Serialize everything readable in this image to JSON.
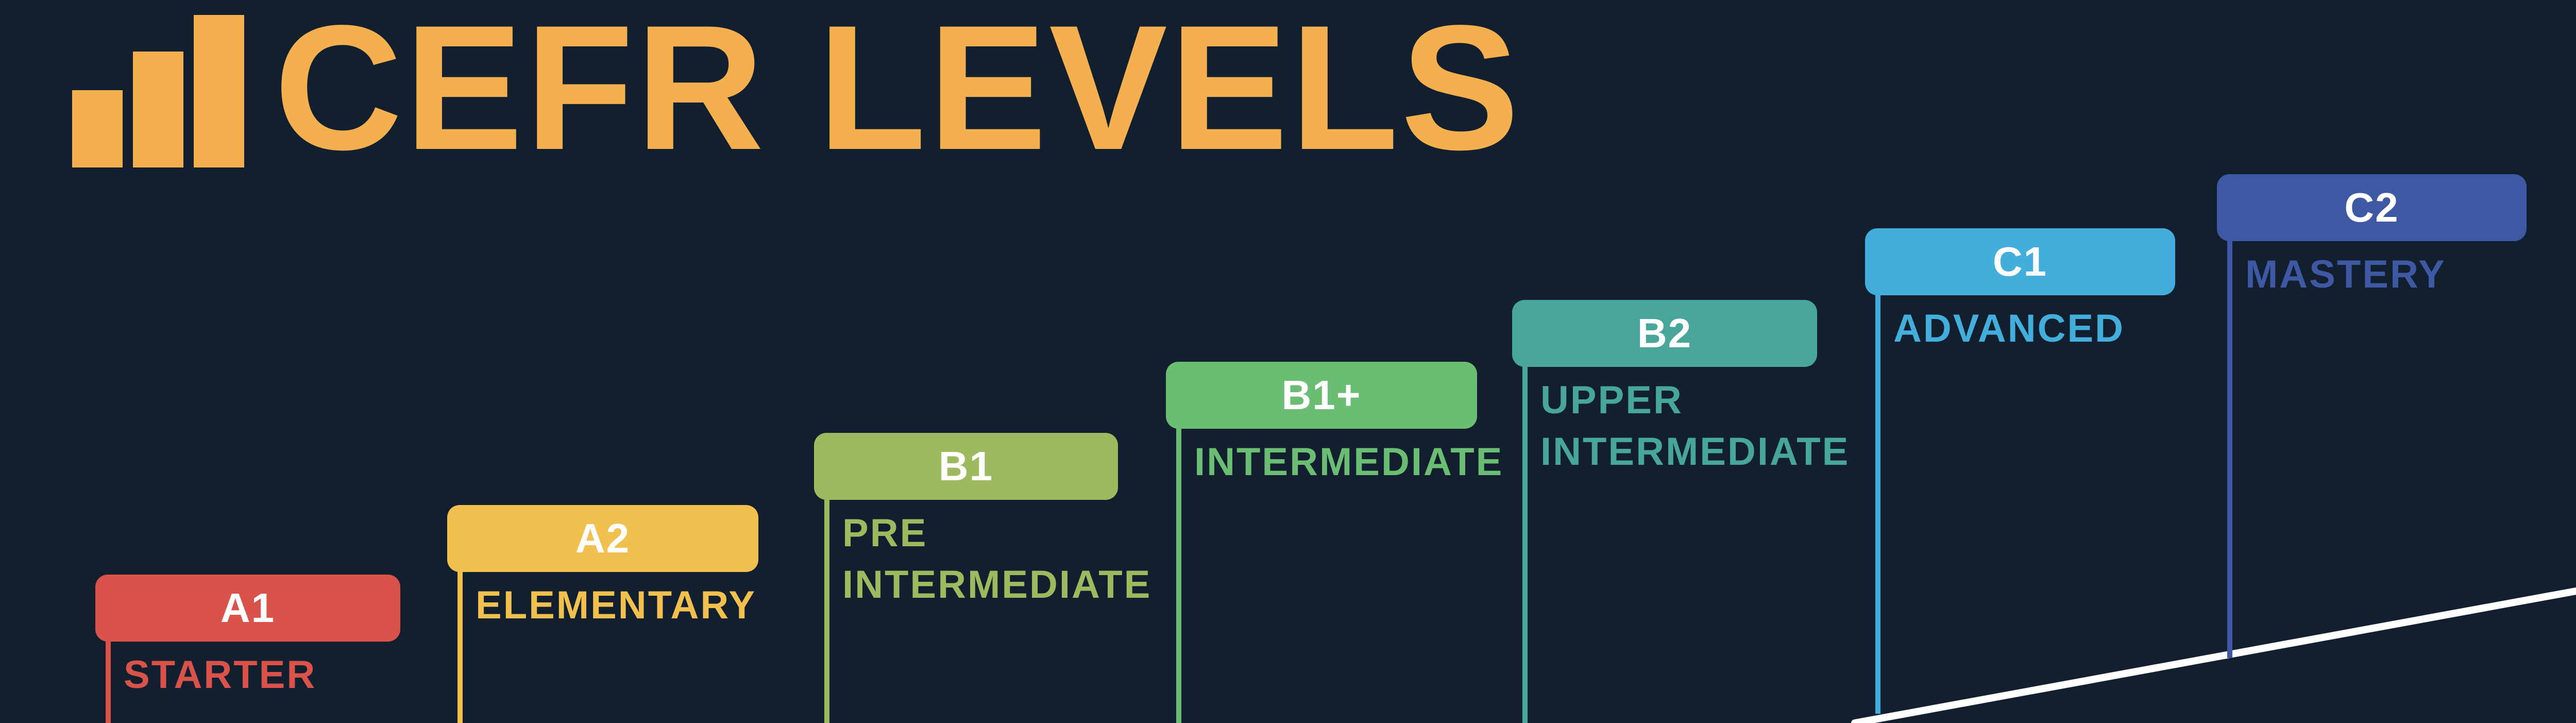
{
  "title": "CEFR LEVELS",
  "accent_color": "#f4b04f",
  "background_color": "#111f2f",
  "logo_icon": "bar-chart-icon",
  "levels": [
    {
      "code": "A1",
      "name_lines": [
        "STARTER"
      ],
      "color": "#d9534a"
    },
    {
      "code": "A2",
      "name_lines": [
        "ELEMENTARY"
      ],
      "color": "#f1c04f"
    },
    {
      "code": "B1",
      "name_lines": [
        "PRE",
        "INTERMEDIATE"
      ],
      "color": "#9dbb5e"
    },
    {
      "code": "B1+",
      "name_lines": [
        "INTERMEDIATE"
      ],
      "color": "#6cbd74"
    },
    {
      "code": "B2",
      "name_lines": [
        "UPPER",
        "INTERMEDIATE"
      ],
      "color": "#48a59a"
    },
    {
      "code": "C1",
      "name_lines": [
        "ADVANCED"
      ],
      "color": "#43aedb"
    },
    {
      "code": "C2",
      "name_lines": [
        "MASTERY"
      ],
      "color": "#3f58a3"
    }
  ]
}
